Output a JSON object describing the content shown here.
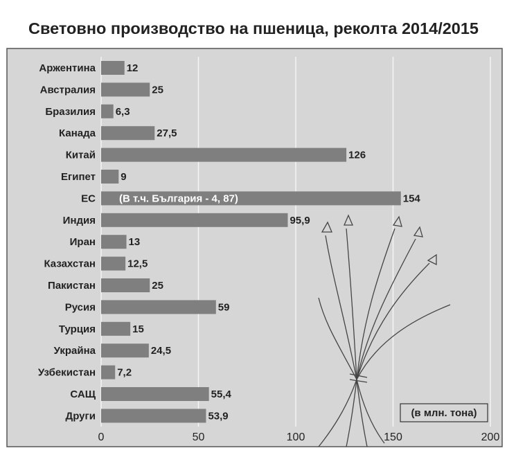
{
  "chart_data": {
    "type": "bar",
    "orientation": "horizontal",
    "title": "Световно производство на пшеница, реколта 2014/2015",
    "categories": [
      "Аржентина",
      "Австралия",
      "Бразилия",
      "Канада",
      "Китай",
      "Египет",
      "ЕС",
      "Индия",
      "Иран",
      "Казахстан",
      "Пакистан",
      "Русия",
      "Турция",
      "Украйна",
      "Узбекистан",
      "САЩ",
      "Други"
    ],
    "values": [
      12,
      25,
      6.3,
      27.5,
      126,
      9,
      154,
      95.9,
      13,
      12.5,
      25,
      59,
      15,
      24.5,
      7.2,
      55.4,
      53.9
    ],
    "value_labels": [
      "12",
      "25",
      "6,3",
      "27,5",
      "126",
      "9",
      "154",
      "95,9",
      "13",
      "12,5",
      "25",
      "59",
      "15",
      "24,5",
      "7,2",
      "55,4",
      "53,9"
    ],
    "annotation": "(В т.ч. България - 4, 87)",
    "unit_note": "(в млн. тона)",
    "color": "#7f7f7f",
    "xlim": [
      0,
      200
    ],
    "xticks": [
      0,
      50,
      100,
      150,
      200
    ],
    "grid": true
  }
}
